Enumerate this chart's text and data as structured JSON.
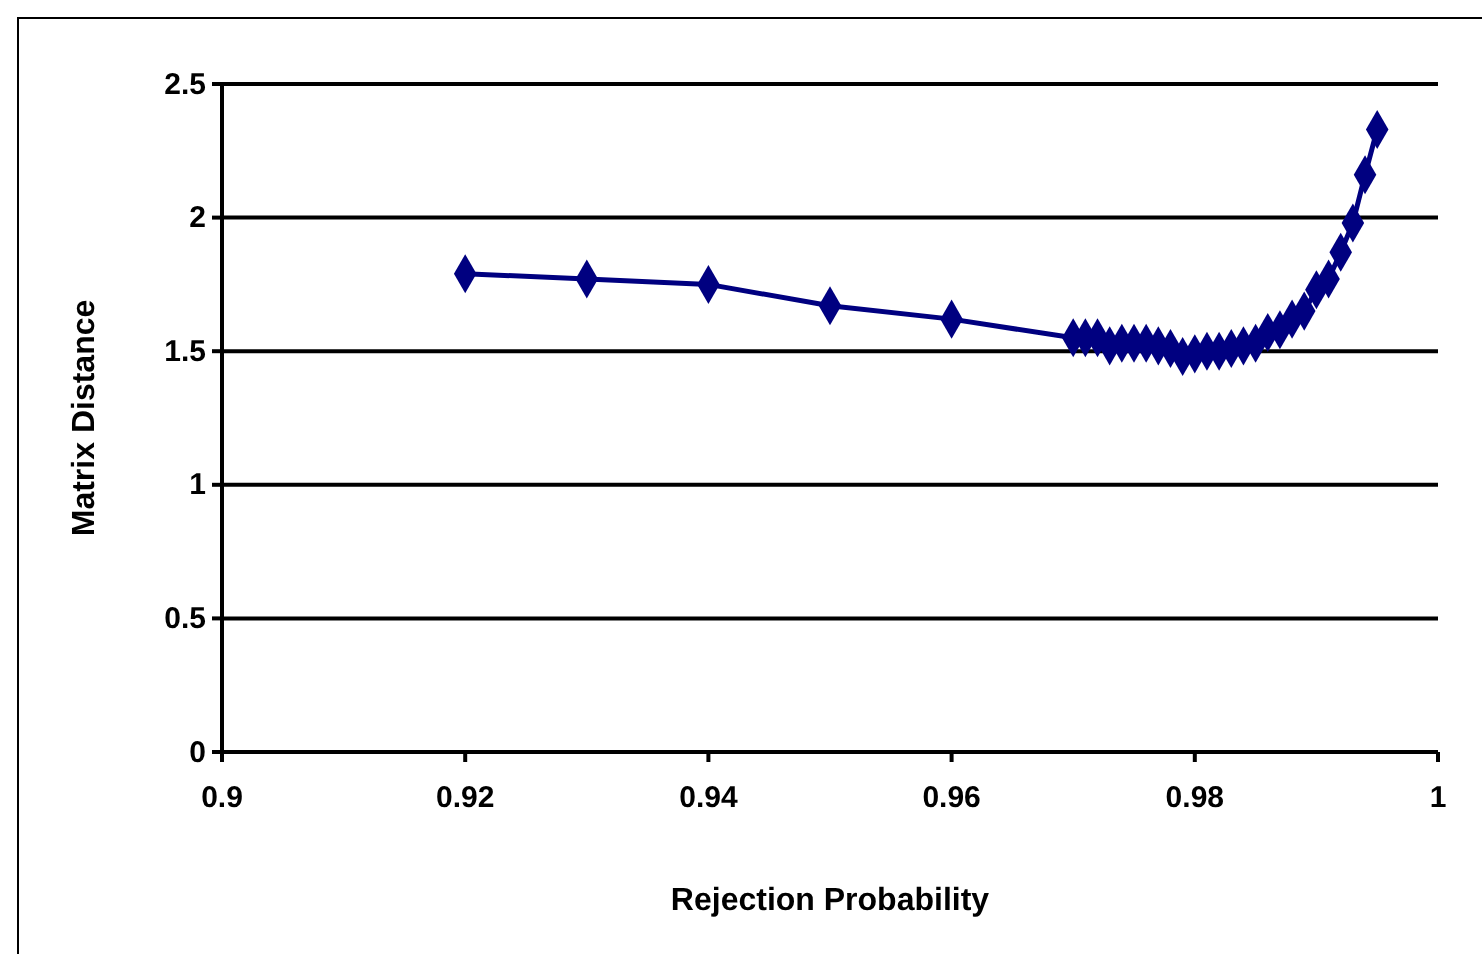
{
  "chart_data": {
    "type": "line",
    "xlabel": "Rejection Probability",
    "ylabel": "Matrix Distance",
    "x": [
      0.92,
      0.93,
      0.94,
      0.95,
      0.96,
      0.97,
      0.971,
      0.972,
      0.973,
      0.974,
      0.975,
      0.976,
      0.977,
      0.978,
      0.979,
      0.98,
      0.981,
      0.982,
      0.983,
      0.984,
      0.985,
      0.986,
      0.987,
      0.988,
      0.989,
      0.99,
      0.991,
      0.992,
      0.993,
      0.994,
      0.995
    ],
    "series": [
      {
        "color": "#000080",
        "values": [
          1.79,
          1.77,
          1.75,
          1.67,
          1.62,
          1.55,
          1.55,
          1.55,
          1.52,
          1.53,
          1.53,
          1.53,
          1.52,
          1.51,
          1.48,
          1.49,
          1.5,
          1.5,
          1.51,
          1.52,
          1.53,
          1.57,
          1.58,
          1.62,
          1.65,
          1.73,
          1.77,
          1.87,
          1.98,
          2.16,
          2.33
        ]
      }
    ],
    "xlim": [
      0.9,
      1
    ],
    "xticks": [
      0.9,
      0.92,
      0.94,
      0.96,
      0.98,
      1
    ],
    "ylim": [
      0,
      2.5
    ],
    "yticks": [
      0,
      0.5,
      1,
      1.5,
      2,
      2.5
    ],
    "grid": "y",
    "marker": "diamond",
    "line_style": "solid"
  }
}
